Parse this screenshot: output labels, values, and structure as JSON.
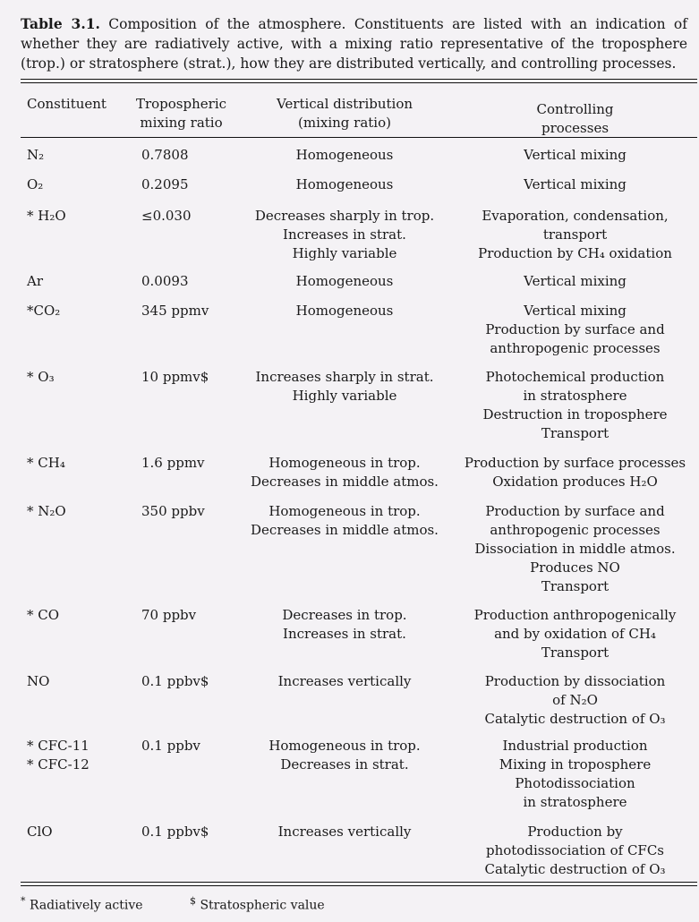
{
  "caption": {
    "label": "Table 3.1.",
    "text": "Composition of the atmosphere. Constituents are listed with an indication of whether they are radiatively active, with a mixing ratio representative of the troposphere (trop.) or stratosphere (strat.), how they are distributed vertically, and controlling processes."
  },
  "headers": {
    "constituent": "Constituent",
    "mixing": [
      "Tropospheric",
      "mixing ratio"
    ],
    "vertical": [
      "Vertical distribution",
      "(mixing ratio)"
    ],
    "controlling": [
      "Controlling",
      "processes"
    ]
  },
  "rows": [
    {
      "constituent": [
        "N₂"
      ],
      "mixing": "0.7808",
      "vertical": [
        "Homogeneous"
      ],
      "controlling": [
        "Vertical mixing"
      ]
    },
    {
      "constituent": [
        "O₂"
      ],
      "mixing": "0.2095",
      "vertical": [
        "Homogeneous"
      ],
      "controlling": [
        "Vertical mixing"
      ]
    },
    {
      "constituent": [
        "* H₂O"
      ],
      "mixing": "≤0.030",
      "vertical": [
        "Decreases sharply in trop.",
        "Increases in strat.",
        "Highly variable"
      ],
      "controlling": [
        "Evaporation, condensation,",
        "transport",
        "Production by CH₄ oxidation"
      ]
    },
    {
      "constituent": [
        "Ar"
      ],
      "mixing": "0.0093",
      "vertical": [
        "Homogeneous"
      ],
      "controlling": [
        "Vertical mixing"
      ]
    },
    {
      "constituent": [
        "*CO₂"
      ],
      "mixing": "345 ppmv",
      "vertical": [
        "Homogeneous"
      ],
      "controlling": [
        "Vertical mixing",
        "Production by surface and",
        "anthropogenic processes"
      ]
    },
    {
      "constituent": [
        "* O₃"
      ],
      "mixing": "10 ppmv$",
      "vertical": [
        "Increases sharply in strat.",
        "Highly variable"
      ],
      "controlling": [
        "Photochemical production",
        "in stratosphere",
        "Destruction in troposphere",
        "Transport"
      ]
    },
    {
      "constituent": [
        "* CH₄"
      ],
      "mixing": "1.6 ppmv",
      "vertical": [
        "Homogeneous in trop.",
        "Decreases in middle atmos."
      ],
      "controlling": [
        "Production by surface processes",
        "Oxidation produces H₂O"
      ]
    },
    {
      "constituent": [
        "* N₂O"
      ],
      "mixing": "350 ppbv",
      "vertical": [
        "Homogeneous in trop.",
        "Decreases in middle atmos."
      ],
      "controlling": [
        "Production by surface and",
        "anthropogenic processes",
        "Dissociation in middle atmos.",
        "Produces NO",
        "Transport"
      ]
    },
    {
      "constituent": [
        "* CO"
      ],
      "mixing": "70 ppbv",
      "vertical": [
        "Decreases in trop.",
        "Increases in strat."
      ],
      "controlling": [
        "Production anthropogenically",
        "and by oxidation of CH₄",
        "Transport"
      ]
    },
    {
      "constituent": [
        "NO"
      ],
      "mixing": "0.1 ppbv$",
      "vertical": [
        "Increases vertically"
      ],
      "controlling": [
        "Production by dissociation",
        "of N₂O",
        "Catalytic destruction of O₃"
      ]
    },
    {
      "constituent": [
        "* CFC-11",
        "* CFC-12"
      ],
      "mixing": "0.1 ppbv",
      "vertical": [
        "Homogeneous in trop.",
        "Decreases in strat."
      ],
      "controlling": [
        "Industrial production",
        "Mixing in troposphere",
        "Photodissociation",
        "in stratosphere"
      ]
    },
    {
      "constituent": [
        "ClO"
      ],
      "mixing": "0.1 ppbv$",
      "vertical": [
        "Increases vertically"
      ],
      "controlling": [
        "Production by",
        "photodissociation of CFCs",
        "Catalytic destruction of O₃"
      ]
    }
  ],
  "footnotes": {
    "star_symbol": "*",
    "star_text": "Radiatively active",
    "dollar_symbol": "$",
    "dollar_text": "Stratospheric value"
  }
}
